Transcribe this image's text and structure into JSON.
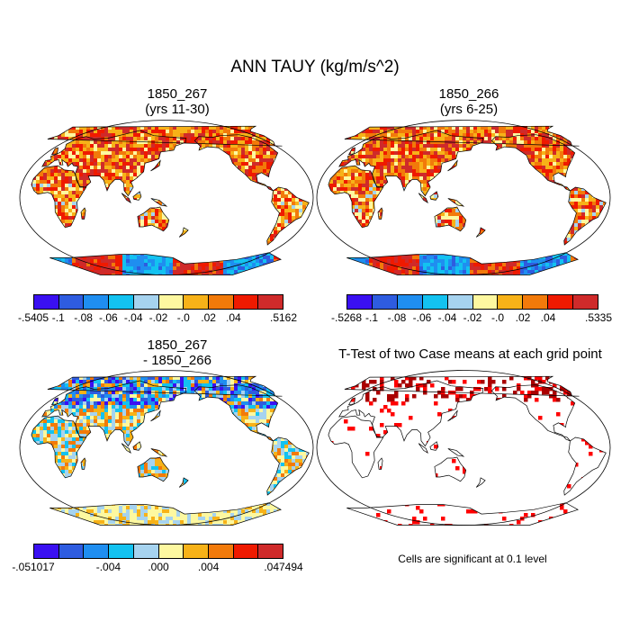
{
  "title": "ANN TAUY (kg/m/s^2)",
  "panels": {
    "top_left": {
      "title": "1850_267\n(yrs 11-30)"
    },
    "top_right": {
      "title": "1850_266\n(yrs 6-25)"
    },
    "bottom_left": {
      "title": "1850_267\n- 1850_266"
    },
    "bottom_right": {
      "title": "T-Test of two Case means at each grid point"
    }
  },
  "colorbars": {
    "top_left": {
      "colors": [
        "#3a10f2",
        "#2e5ce0",
        "#1f8ef0",
        "#13c2f0",
        "#a6d3ef",
        "#fdf8a0",
        "#f7b218",
        "#f27a0a",
        "#ef1a00",
        "#cf2a2a"
      ],
      "labels": [
        "-.5405",
        "-.1",
        "-.08",
        "-.06",
        "-.04",
        "-.02",
        "-.0",
        ".02",
        ".04",
        ".5162"
      ]
    },
    "top_right": {
      "colors": [
        "#3a10f2",
        "#2e5ce0",
        "#1f8ef0",
        "#13c2f0",
        "#a6d3ef",
        "#fdf8a0",
        "#f7b218",
        "#f27a0a",
        "#ef1a00",
        "#cf2a2a"
      ],
      "labels": [
        "-.5268",
        "-.1",
        "-.08",
        "-.06",
        "-.04",
        "-.02",
        "-.0",
        ".02",
        ".04",
        ".5335"
      ]
    },
    "bottom_left": {
      "colors": [
        "#3a10f2",
        "#2e5ce0",
        "#1f8ef0",
        "#13c2f0",
        "#a6d3ef",
        "#fdf8a0",
        "#f7b218",
        "#f27a0a",
        "#ef1a00",
        "#cf2a2a"
      ],
      "labels": [
        "-.051017",
        "-.004",
        ".000",
        ".004",
        ".047494"
      ]
    }
  },
  "ttest_note": "Cells are significant at 0.1 level"
}
